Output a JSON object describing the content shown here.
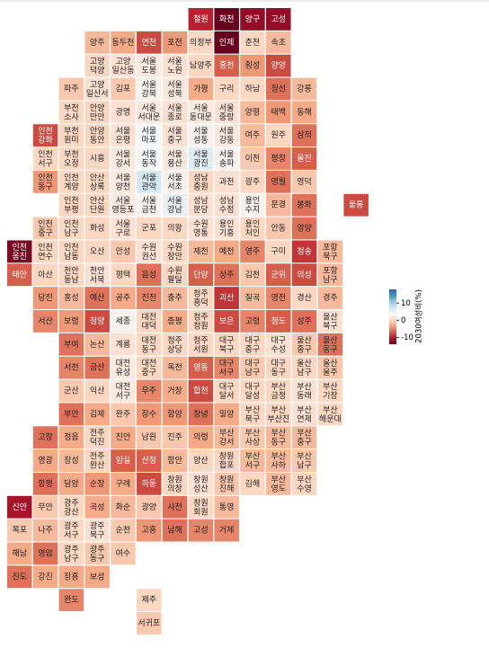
{
  "chart_data": {
    "type": "tilemap",
    "colorbar_title": "2030여성비(%)",
    "ylim": [
      -14,
      18
    ],
    "yticks": [
      10,
      0,
      -10
    ],
    "colors": [
      "#67001f",
      "#b2182b",
      "#d6604d",
      "#f4a582",
      "#fddbc7",
      "#f7f7f7",
      "#d1e5f0",
      "#92c5de",
      "#4393c3",
      "#2166ac"
    ],
    "names": [
      "철원",
      "화천",
      "양구",
      "고성",
      "양주",
      "동두천",
      "연천",
      "포천",
      "의정부",
      "인제",
      "춘천",
      "속초",
      "고양 덕양",
      "고양 일산동",
      "서울 도봉",
      "서울 노원",
      "남양주",
      "홍천",
      "횡성",
      "양양",
      "파주",
      "고양 일산서",
      "김포",
      "서울 강북",
      "서울 성북",
      "가평",
      "구리",
      "하남",
      "정선",
      "강릉",
      "부천 소사",
      "안양 만안",
      "광명",
      "서울 서대문",
      "서울 종로",
      "서울 동대문",
      "서울 중랑",
      "양평",
      "태백",
      "동해",
      "인천 강화",
      "부천 원미",
      "안양 동안",
      "서울 은평",
      "서울 마포",
      "서울 중구",
      "서울 성동",
      "서울 강동",
      "여주",
      "원주",
      "삼척",
      "인천 서구",
      "부천 오정",
      "시흥",
      "서울 강서",
      "서울 동작",
      "서울 용산",
      "서울 광진",
      "서울 송파",
      "이천",
      "평창",
      "울진",
      "인천 동구",
      "인천 계양",
      "안산 상록",
      "서울 양천",
      "서울 관악",
      "서울 서초",
      "성남 중원",
      "과천",
      "광주",
      "영월",
      "영덕",
      "인천 부평",
      "안산 단원",
      "서울 영등포",
      "서울 금천",
      "서울 강남",
      "성남 분당",
      "성남 수정",
      "용인 수지",
      "문경",
      "봉화",
      "울릉",
      "인천 중구",
      "인천 남구",
      "화성",
      "서울 구로",
      "군포",
      "의왕",
      "수원 영통",
      "용인 기흥",
      "용인 처인",
      "안동",
      "영양",
      "인천 옹진",
      "인천 연수",
      "인천 남동",
      "오산",
      "안성",
      "수원 권선",
      "수원 장안",
      "제천",
      "예천",
      "영주",
      "구미",
      "청송",
      "포항 북구",
      "태안",
      "아산",
      "천안 동남",
      "천안 서북",
      "평택",
      "음성",
      "수원 팔달",
      "단양",
      "상주",
      "김천",
      "군위",
      "의성",
      "포항 남구",
      "당진",
      "홍성",
      "예산",
      "공주",
      "진천",
      "충주",
      "청주 흥덕",
      "괴산",
      "칠곡",
      "영천",
      "경산",
      "경주",
      "서산",
      "보령",
      "청양",
      "세종",
      "대전 대덕",
      "증평",
      "청주 청원",
      "보은",
      "고령",
      "청도",
      "성주",
      "울산 북구",
      "부여",
      "논산",
      "계룡",
      "대전 동구",
      "청주 상당",
      "청주 서원",
      "대구 북구",
      "대구 중구",
      "대구 수성",
      "울산 중구",
      "울산 동구",
      "서천",
      "금산",
      "대전 유성",
      "대전 중구",
      "옥천",
      "영동",
      "대구 서구",
      "대구 남구",
      "대구 동구",
      "울산 남구",
      "울산 울주",
      "군산",
      "익산",
      "대전 서구",
      "무주",
      "거창",
      "합천",
      "대구 달서",
      "대구 달성",
      "부산 금정",
      "부산 동래",
      "부산 기장",
      "부안",
      "김제",
      "완주",
      "장수",
      "함양",
      "창녕",
      "밀양",
      "부산 북구",
      "부산 부산진",
      "부산 연제",
      "부산 해운대",
      "고창",
      "정읍",
      "전주 덕진",
      "진안",
      "남원",
      "진주",
      "의령",
      "부산 강서",
      "부산 사상",
      "부산 동구",
      "부산 중구",
      "영광",
      "장성",
      "전주 완산",
      "임실",
      "산청",
      "함안",
      "양산",
      "창원 합포",
      "부산 서구",
      "부산 사하",
      "부산 남구",
      "함평",
      "담양",
      "순창",
      "구례",
      "하동",
      "창원 의창",
      "창원 성산",
      "창원 진해",
      "김해",
      "부산 영도",
      "부산 수영",
      "신안",
      "무안",
      "광주 광산",
      "곡성",
      "화순",
      "광양",
      "사천",
      "창원 회원",
      "통영",
      "목포",
      "나주",
      "광주 서구",
      "광주 북구",
      "순천",
      "고흥",
      "남해",
      "고성",
      "거제",
      "해남",
      "영암",
      "광주 남구",
      "광주 동구",
      "여수",
      "진도",
      "강진",
      "장흥",
      "보성",
      "완도",
      "제주",
      "서귀포"
    ],
    "values": [
      -10,
      -14,
      -12,
      -12,
      -2,
      -3,
      -8,
      -4,
      0,
      -14,
      0,
      -2,
      0,
      1,
      2,
      1,
      0,
      -7,
      -4,
      -8,
      -1,
      1,
      -1,
      3,
      2,
      -3,
      0,
      0,
      -6,
      -2,
      0,
      0,
      1,
      2,
      1,
      2,
      1,
      -2,
      -4,
      -3,
      -8,
      0,
      0,
      1,
      4,
      1,
      3,
      2,
      -2,
      0,
      -6,
      0,
      0,
      0,
      2,
      4,
      2,
      6,
      3,
      -1,
      -5,
      -7,
      -4,
      0,
      0,
      2,
      7,
      3,
      0,
      1,
      0,
      -6,
      -1,
      0,
      0,
      2,
      3,
      5,
      1,
      1,
      3,
      -2,
      -6,
      -8,
      -1,
      0,
      0,
      1,
      0,
      0,
      1,
      1,
      0,
      -1,
      -6,
      -13,
      0,
      0,
      0,
      -1,
      1,
      0,
      -2,
      -3,
      -5,
      0,
      -9,
      -2,
      -7,
      0,
      0,
      1,
      0,
      -6,
      0,
      -7,
      -6,
      -1,
      -7,
      -8,
      -2,
      -4,
      -2,
      -6,
      -3,
      -5,
      -2,
      0,
      -9,
      -2,
      -5,
      0,
      -2,
      -5,
      -4,
      -8,
      3,
      0,
      -3,
      0,
      -8,
      -5,
      -7,
      -6,
      1,
      -6,
      -2,
      1,
      0,
      0,
      0,
      0,
      0,
      1,
      -1,
      -6,
      -5,
      -6,
      2,
      0,
      -2,
      -7,
      -5,
      -1,
      0,
      0,
      -1,
      -1,
      0,
      2,
      -5,
      -3,
      -8,
      0,
      0,
      0,
      1,
      0,
      -6,
      -3,
      -1,
      -4,
      -4,
      -6,
      -3,
      0,
      0,
      1,
      0,
      -6,
      -3,
      0,
      -3,
      -1,
      -1,
      -3,
      -2,
      -1,
      -2,
      -2,
      -3,
      -2,
      0,
      -7,
      -7,
      -2,
      0,
      0,
      -2,
      -2,
      -1,
      -6,
      -3,
      -4,
      -3,
      -8,
      0,
      1,
      -1,
      0,
      -2,
      0,
      -11,
      -1,
      0,
      -3,
      -2,
      -1,
      -6,
      0,
      -2,
      -1,
      -2,
      0,
      1,
      -1,
      -4,
      -6,
      -5,
      -5,
      -3,
      -6,
      0,
      -1,
      -1,
      -6,
      -3,
      -3,
      -3,
      -5,
      0,
      -1
    ]
  }
}
